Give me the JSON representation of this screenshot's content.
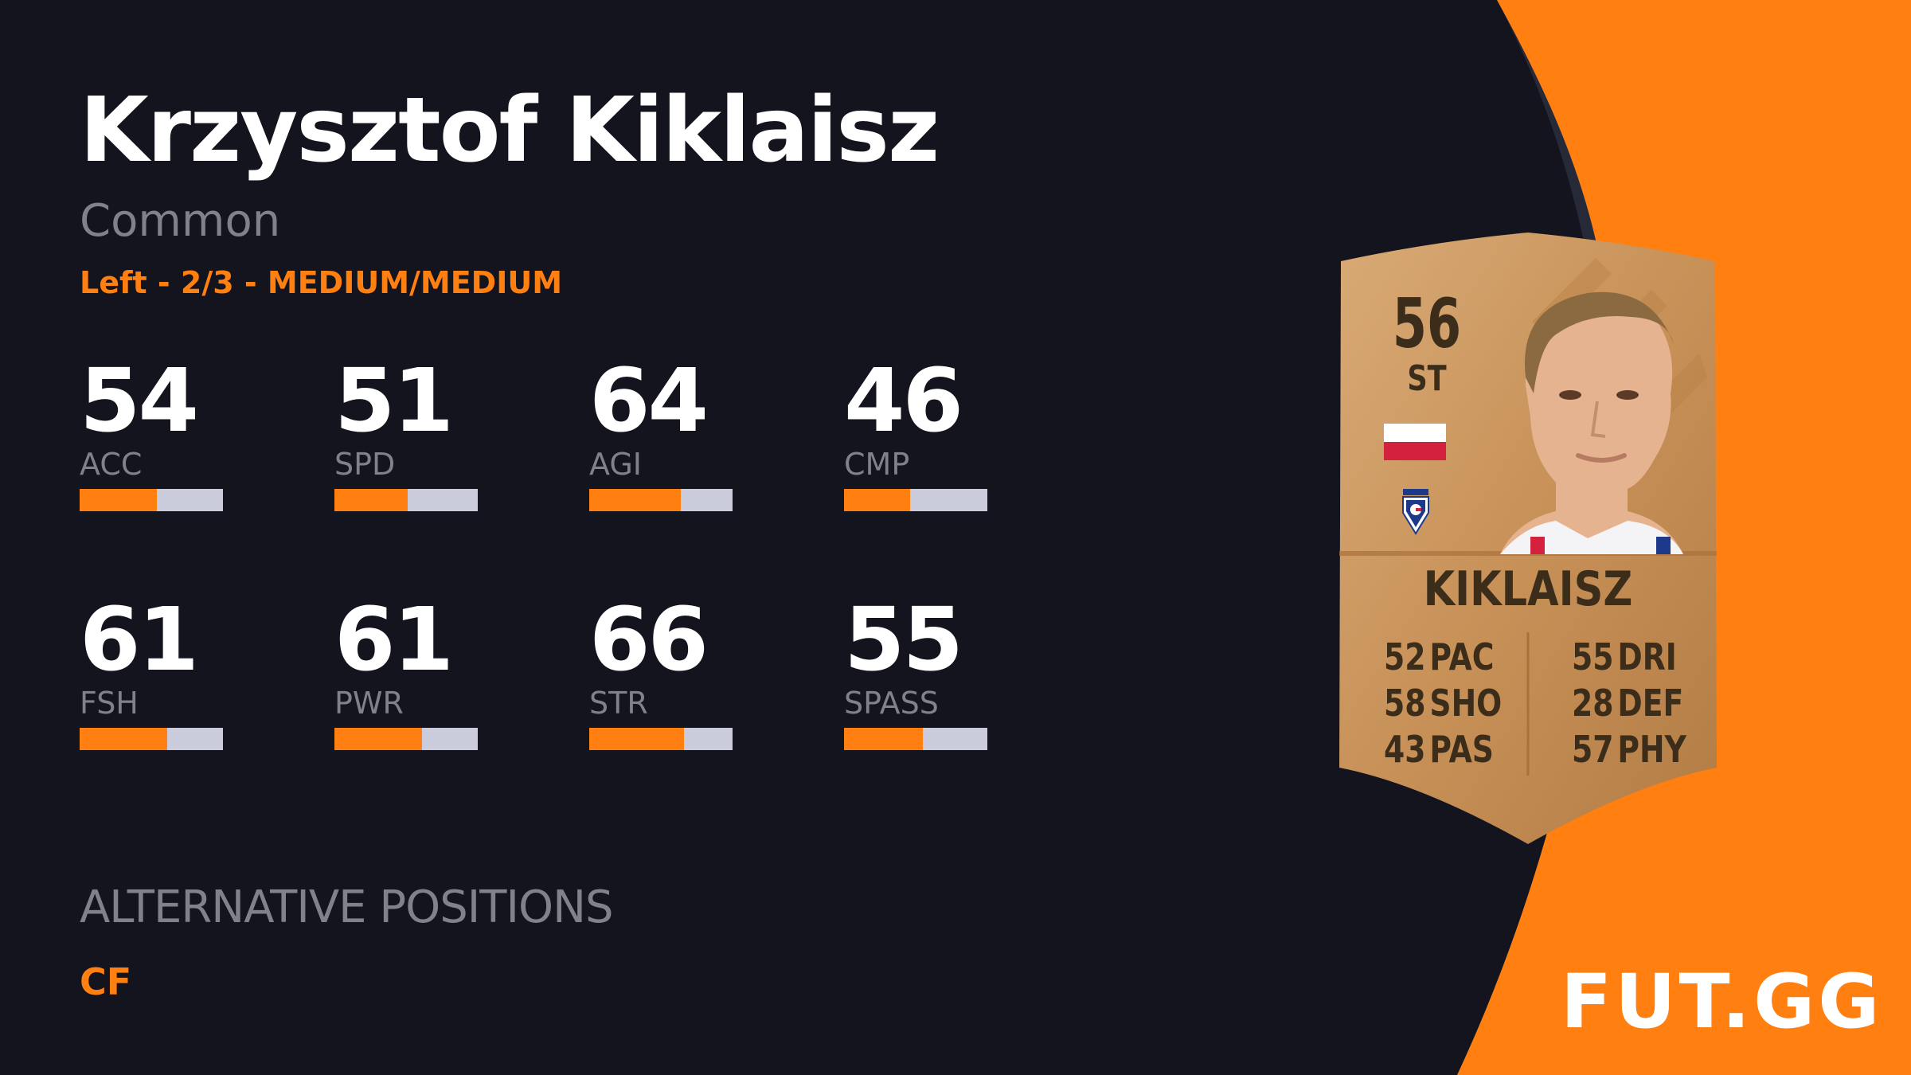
{
  "player": {
    "name": "Krzysztof Kiklaisz",
    "rarity": "Common",
    "traits": "Left - 2/3 - MEDIUM/MEDIUM"
  },
  "stats": [
    {
      "value": "54",
      "label": "ACC",
      "fill": 0.54
    },
    {
      "value": "51",
      "label": "SPD",
      "fill": 0.51
    },
    {
      "value": "64",
      "label": "AGI",
      "fill": 0.64
    },
    {
      "value": "46",
      "label": "CMP",
      "fill": 0.46
    },
    {
      "value": "61",
      "label": "FSH",
      "fill": 0.61
    },
    {
      "value": "61",
      "label": "PWR",
      "fill": 0.61
    },
    {
      "value": "66",
      "label": "STR",
      "fill": 0.66
    },
    {
      "value": "55",
      "label": "SPASS",
      "fill": 0.55
    }
  ],
  "alternative": {
    "title": "ALTERNATIVE POSITIONS",
    "positions": "CF"
  },
  "card": {
    "rating": "56",
    "position": "ST",
    "name": "KIKLAISZ",
    "flag": "poland-flag-icon",
    "club": "gornik-zabrze-crest-icon",
    "left_stats": [
      {
        "value": "52",
        "label": "PAC"
      },
      {
        "value": "58",
        "label": "SHO"
      },
      {
        "value": "43",
        "label": "PAS"
      }
    ],
    "right_stats": [
      {
        "value": "55",
        "label": "DRI"
      },
      {
        "value": "28",
        "label": "DEF"
      },
      {
        "value": "57",
        "label": "PHY"
      }
    ]
  },
  "brand": "FUT.GG",
  "colors": {
    "background": "#13141e",
    "accent": "#ff7f10",
    "muted_text": "#80818b",
    "bar_track": "#cbccdb",
    "card_gold": "#c9955d"
  }
}
